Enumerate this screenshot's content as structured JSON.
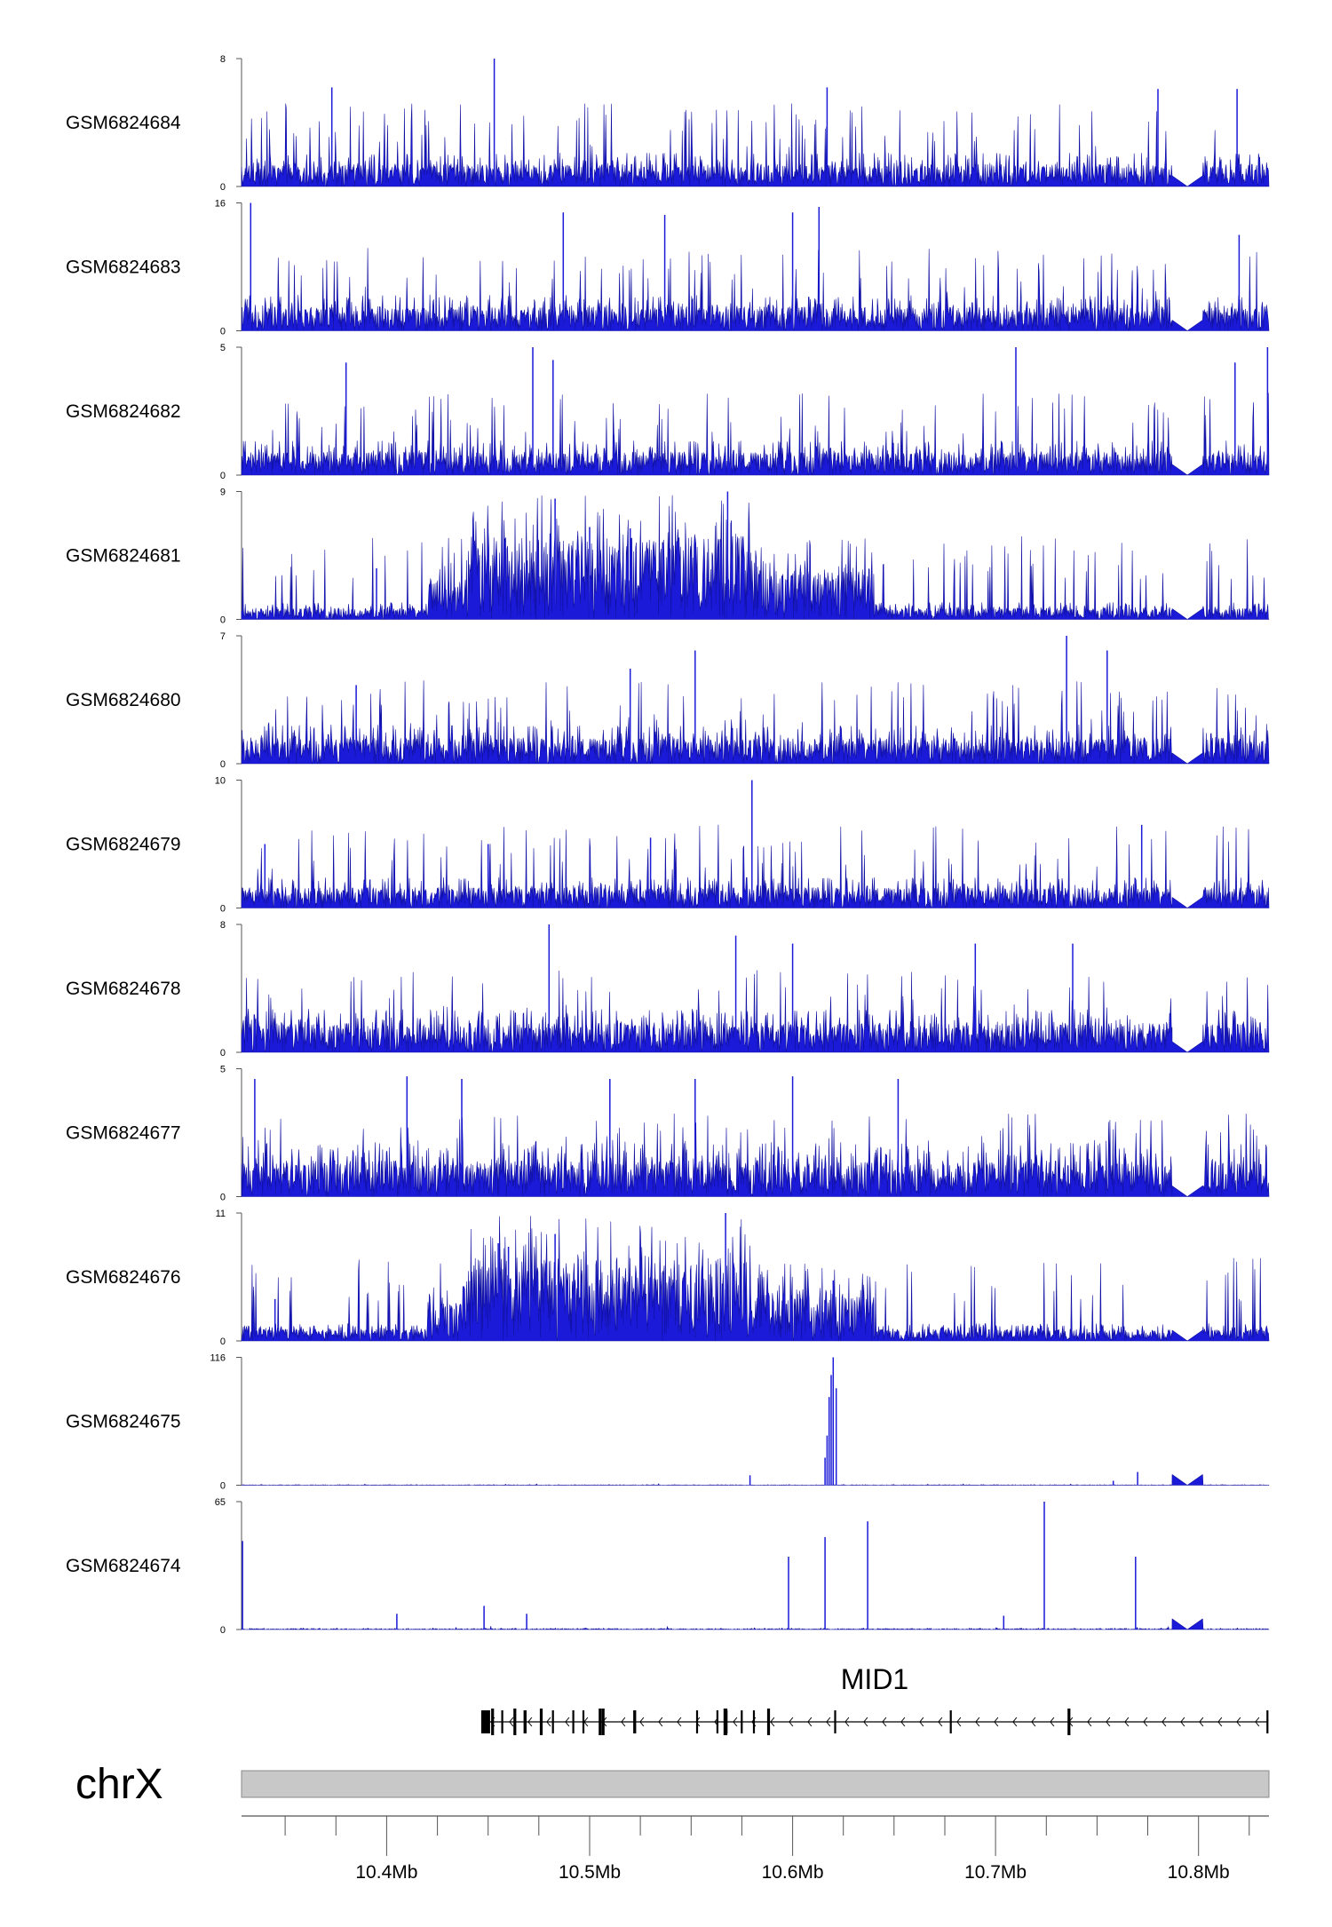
{
  "chart_data": {
    "type": "area",
    "title": "",
    "xlabel": "",
    "ylabel": "",
    "chromosome": "chrX",
    "xlim_mb": [
      10.3285,
      10.8347
    ],
    "x_ticks": [
      {
        "value": 10.4,
        "label": "10.4Mb"
      },
      {
        "value": 10.5,
        "label": "10.5Mb"
      },
      {
        "value": 10.6,
        "label": "10.6Mb"
      },
      {
        "value": 10.7,
        "label": "10.7Mb"
      },
      {
        "value": 10.8,
        "label": "10.8Mb"
      }
    ],
    "gap_region_mb": [
      10.787,
      10.802
    ],
    "series": [
      {
        "name": "GSM6824684",
        "ymin_label": "0",
        "ymax_label": "8",
        "ymax": 8,
        "profile": "noise",
        "base": 0.7,
        "spikes": [
          [
            10.453,
            8
          ],
          [
            10.373,
            6.2
          ],
          [
            10.617,
            6.2
          ],
          [
            10.819,
            6.1
          ],
          [
            10.78,
            6.1
          ]
        ]
      },
      {
        "name": "GSM6824683",
        "ymin_label": "0",
        "ymax_label": "16",
        "ymax": 16,
        "profile": "noise",
        "base": 1.5,
        "spikes": [
          [
            10.333,
            16
          ],
          [
            10.487,
            14.8
          ],
          [
            10.537,
            14.5
          ],
          [
            10.6,
            14.8
          ],
          [
            10.613,
            15.5
          ],
          [
            10.82,
            12
          ]
        ]
      },
      {
        "name": "GSM6824682",
        "ymin_label": "0",
        "ymax_label": "5",
        "ymax": 5,
        "profile": "noise",
        "base": 0.45,
        "spikes": [
          [
            10.472,
            5
          ],
          [
            10.71,
            5
          ],
          [
            10.834,
            5
          ],
          [
            10.38,
            4.4
          ],
          [
            10.482,
            4.5
          ],
          [
            10.818,
            4.4
          ]
        ]
      },
      {
        "name": "GSM6824681",
        "ymin_label": "0",
        "ymax_label": "9",
        "ymax": 9,
        "profile": "broad",
        "base": 0.4,
        "spikes": [
          [
            10.568,
            9
          ],
          [
            10.483,
            8.5
          ],
          [
            10.5,
            6.5
          ],
          [
            10.52,
            6.4
          ],
          [
            10.395,
            3.6
          ]
        ]
      },
      {
        "name": "GSM6824680",
        "ymin_label": "0",
        "ymax_label": "7",
        "ymax": 7,
        "profile": "noise",
        "base": 0.7,
        "spikes": [
          [
            10.735,
            7
          ],
          [
            10.552,
            6.2
          ],
          [
            10.755,
            6.2
          ],
          [
            10.52,
            5.2
          ],
          [
            10.385,
            4.3
          ]
        ]
      },
      {
        "name": "GSM6824679",
        "ymin_label": "0",
        "ymax_label": "10",
        "ymax": 10,
        "profile": "noise",
        "base": 0.8,
        "spikes": [
          [
            10.58,
            10
          ],
          [
            10.772,
            6.5
          ],
          [
            10.34,
            5
          ],
          [
            10.45,
            5
          ],
          [
            10.53,
            5.5
          ]
        ]
      },
      {
        "name": "GSM6824678",
        "ymin_label": "0",
        "ymax_label": "8",
        "ymax": 8,
        "profile": "noise",
        "base": 0.9,
        "spikes": [
          [
            10.48,
            8
          ],
          [
            10.572,
            7.3
          ],
          [
            10.6,
            6.8
          ],
          [
            10.69,
            6.8
          ],
          [
            10.738,
            6.8
          ]
        ]
      },
      {
        "name": "GSM6824677",
        "ymin_label": "0",
        "ymax_label": "5",
        "ymax": 5,
        "profile": "noise",
        "base": 0.7,
        "spikes": [
          [
            10.335,
            4.6
          ],
          [
            10.41,
            4.7
          ],
          [
            10.437,
            4.6
          ],
          [
            10.51,
            4.6
          ],
          [
            10.552,
            4.6
          ],
          [
            10.6,
            4.7
          ],
          [
            10.652,
            4.6
          ]
        ]
      },
      {
        "name": "GSM6824676",
        "ymin_label": "0",
        "ymax_label": "11",
        "ymax": 11,
        "profile": "broad",
        "base": 0.5,
        "spikes": [
          [
            10.567,
            11
          ],
          [
            10.483,
            9.2
          ],
          [
            10.455,
            8.4
          ],
          [
            10.46,
            8.1
          ],
          [
            10.62,
            5.2
          ],
          [
            10.345,
            3.6
          ]
        ]
      },
      {
        "name": "GSM6824675",
        "ymin_label": "0",
        "ymax_label": "116",
        "ymax": 116,
        "profile": "sparse",
        "base": 0.5,
        "spikes": [
          [
            10.62,
            116
          ],
          [
            10.619,
            100
          ],
          [
            10.618,
            80
          ],
          [
            10.6215,
            88
          ],
          [
            10.617,
            45
          ],
          [
            10.616,
            25
          ],
          [
            10.579,
            9
          ],
          [
            10.77,
            12
          ],
          [
            10.758,
            4
          ]
        ]
      },
      {
        "name": "GSM6824674",
        "ymin_label": "0",
        "ymax_label": "65",
        "ymax": 65,
        "profile": "sparse",
        "base": 0.6,
        "spikes": [
          [
            10.329,
            45
          ],
          [
            10.598,
            37
          ],
          [
            10.616,
            47
          ],
          [
            10.637,
            55
          ],
          [
            10.724,
            65
          ],
          [
            10.769,
            37
          ],
          [
            10.448,
            12
          ],
          [
            10.405,
            8
          ],
          [
            10.469,
            8
          ],
          [
            10.704,
            7
          ]
        ]
      }
    ],
    "gene_track": {
      "gene_name": "MID1",
      "strand": "-",
      "start_mb": 10.447,
      "end_mb": 10.834,
      "exons_mb": [
        10.449,
        10.4505,
        10.452,
        10.457,
        10.463,
        10.468,
        10.4685,
        10.476,
        10.482,
        10.492,
        10.497,
        10.505,
        10.5065,
        10.522,
        10.5225,
        10.553,
        10.563,
        10.5665,
        10.567,
        10.5675,
        10.575,
        10.581,
        10.588,
        10.621,
        10.678,
        10.736,
        10.834
      ]
    }
  }
}
